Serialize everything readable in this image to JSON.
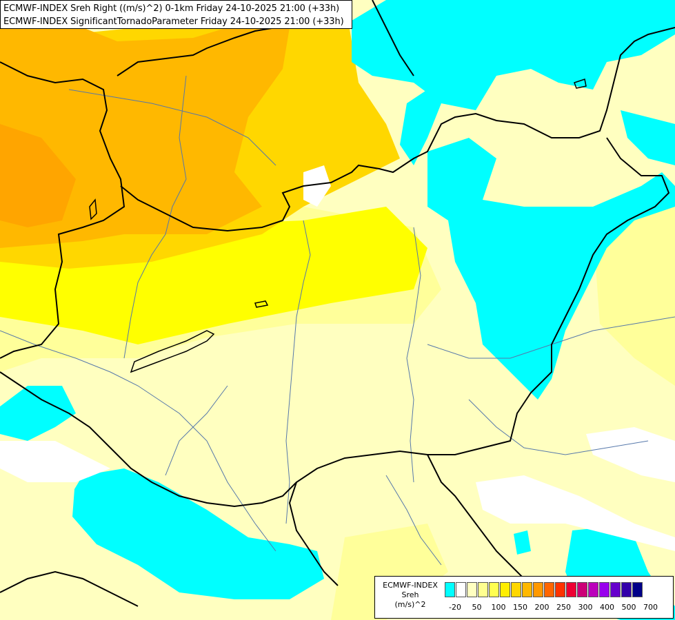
{
  "header": {
    "line1": "ECMWF-INDEX Sreh Right ((m/s)^2) 0-1km Friday 24-10-2025 21:00 (+33h)",
    "line2": "ECMWF-INDEX SignificantTornadoParameter Friday 24-10-2025 21:00 (+33h)"
  },
  "legend": {
    "source": "ECMWF-INDEX",
    "variable": "Sreh",
    "unit": "(m/s)^2",
    "colors": [
      "#00ffff",
      "#ffffff",
      "#ffffc0",
      "#ffff90",
      "#ffff50",
      "#ffee00",
      "#ffd700",
      "#ffb800",
      "#ff9900",
      "#ff6600",
      "#ff3300",
      "#ee0033",
      "#cc0077",
      "#bb00bb",
      "#9900ee",
      "#6600cc",
      "#3300aa",
      "#000088"
    ],
    "ticks": [
      "-20",
      "50",
      "100",
      "150",
      "200",
      "250",
      "300",
      "400",
      "500",
      "700"
    ]
  },
  "map_colors": {
    "cyan": "#00ffff",
    "white": "#ffffff",
    "pale_yellow": "#ffffc0",
    "light_yellow": "#ffff9a",
    "yellow": "#ffff00",
    "gold": "#ffd700",
    "orange": "#ffb800",
    "dark_orange": "#ffa500",
    "border": "#000000",
    "river": "#5577aa"
  }
}
